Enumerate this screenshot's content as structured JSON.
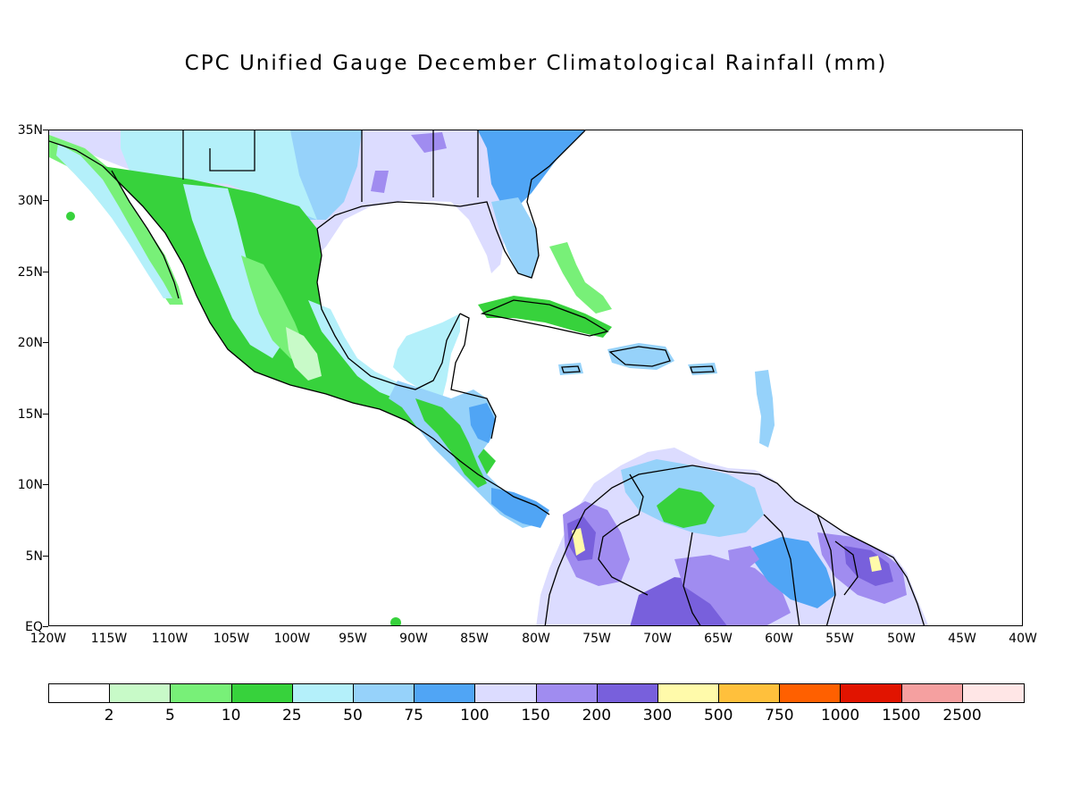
{
  "title": "CPC Unified Gauge December Climatological Rainfall (mm)",
  "map": {
    "region": "Central America and Caribbean",
    "lon_range": [
      -120,
      -40
    ],
    "lat_range": [
      0,
      35
    ],
    "y_ticks": [
      "35N",
      "30N",
      "25N",
      "20N",
      "15N",
      "10N",
      "5N",
      "EQ"
    ],
    "x_ticks": [
      "120W",
      "115W",
      "110W",
      "105W",
      "100W",
      "95W",
      "90W",
      "85W",
      "80W",
      "75W",
      "70W",
      "65W",
      "60W",
      "55W",
      "50W",
      "45W",
      "40W"
    ]
  },
  "legend": {
    "colors": [
      "#ffffff",
      "#c8fac8",
      "#78f078",
      "#37d23c",
      "#b4f0fa",
      "#96d2fa",
      "#50a5f5",
      "#dcdcff",
      "#a08cf0",
      "#7860dc",
      "#fffaaa",
      "#ffc03c",
      "#ff6000",
      "#e11400",
      "#f5a0a0",
      "#ffe6e6"
    ],
    "labels": [
      "2",
      "5",
      "10",
      "25",
      "50",
      "75",
      "100",
      "150",
      "200",
      "300",
      "500",
      "750",
      "1000",
      "1500",
      "2500"
    ]
  }
}
